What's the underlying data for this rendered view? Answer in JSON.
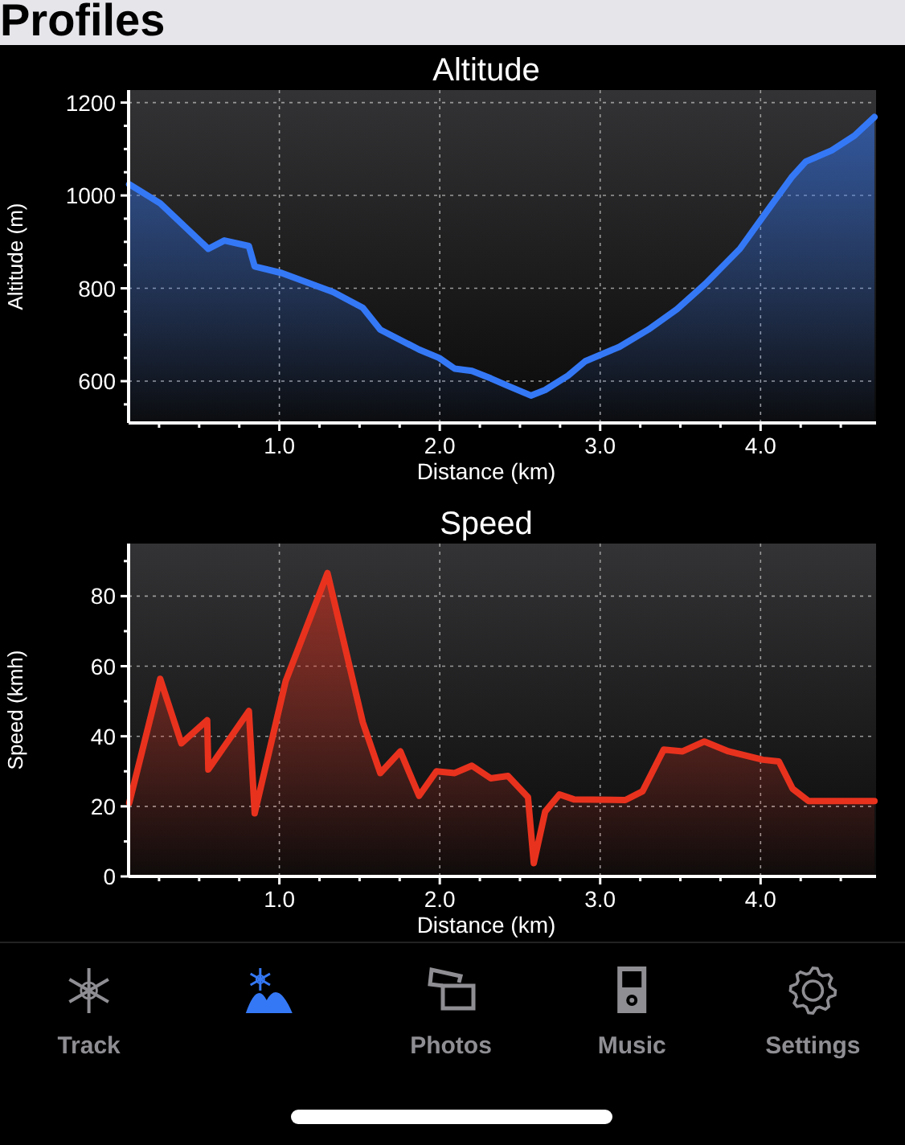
{
  "chart_data": [
    {
      "type": "other",
      "title": "Profiles",
      "categories": [
        "Track",
        null,
        "Photos",
        "Music",
        "Settings"
      ]
    },
    {
      "type": "area",
      "title": "Altitude",
      "xlabel": "Distance (km)",
      "ylabel": "Altitude (m)",
      "grid": true,
      "xlim": [
        0.06,
        4.72
      ],
      "ylim": [
        510,
        1227
      ],
      "xticks": [
        {
          "value": 0.25,
          "label": null
        },
        {
          "value": 0.5,
          "label": null
        },
        {
          "value": 0.75,
          "label": null
        },
        {
          "value": 1,
          "label": "1.0"
        },
        {
          "value": 1.25,
          "label": null
        },
        {
          "value": 1.5,
          "label": null
        },
        {
          "value": 1.75,
          "label": null
        },
        {
          "value": 2,
          "label": "2.0"
        },
        {
          "value": 2.25,
          "label": null
        },
        {
          "value": 2.5,
          "label": null
        },
        {
          "value": 2.75,
          "label": null
        },
        {
          "value": 3,
          "label": "3.0"
        },
        {
          "value": 3.25,
          "label": null
        },
        {
          "value": 3.5,
          "label": null
        },
        {
          "value": 3.75,
          "label": null
        },
        {
          "value": 4,
          "label": "4.0"
        },
        {
          "value": 4.25,
          "label": null
        },
        {
          "value": 4.5,
          "label": null
        }
      ],
      "yticks": [
        {
          "value": 550,
          "label": null
        },
        600,
        {
          "value": 650,
          "label": null
        },
        {
          "value": 700,
          "label": null
        },
        {
          "value": 750,
          "label": null
        },
        800,
        {
          "value": 850,
          "label": null
        },
        {
          "value": 900,
          "label": null
        },
        {
          "value": 950,
          "label": null
        },
        1000,
        {
          "value": 1050,
          "label": null
        },
        {
          "value": 1100,
          "label": null
        },
        {
          "value": 1150,
          "label": null
        },
        1200
      ],
      "x": [
        0.064,
        0.257,
        0.557,
        0.657,
        0.81,
        0.846,
        1.014,
        1.336,
        1.52,
        1.629,
        1.871,
        1.996,
        2.093,
        2.2,
        2.318,
        2.425,
        2.568,
        2.657,
        2.8,
        2.907,
        3.121,
        3.3,
        3.479,
        3.657,
        3.871,
        4.05,
        4.193,
        4.282,
        4.443,
        4.586,
        4.71
      ],
      "series": [
        {
          "color": "#3478f6",
          "values": [
            1024,
            983,
            885,
            903,
            891,
            847,
            833,
            792,
            758,
            711,
            668,
            650,
            627,
            622,
            606,
            590,
            569,
            581,
            612,
            643,
            674,
            711,
            755,
            810,
            885,
            971,
            1039,
            1073,
            1097,
            1129,
            1169
          ]
        }
      ]
    },
    {
      "type": "area",
      "title": "Speed",
      "xlabel": "Distance (km)",
      "ylabel": "Speed (kmh)",
      "grid": true,
      "xlim": [
        0.06,
        4.72
      ],
      "ylim": [
        0,
        95
      ],
      "xticks": [
        {
          "value": 0.25,
          "label": null
        },
        {
          "value": 0.5,
          "label": null
        },
        {
          "value": 0.75,
          "label": null
        },
        {
          "value": 1,
          "label": "1.0"
        },
        {
          "value": 1.25,
          "label": null
        },
        {
          "value": 1.5,
          "label": null
        },
        {
          "value": 1.75,
          "label": null
        },
        {
          "value": 2,
          "label": "2.0"
        },
        {
          "value": 2.25,
          "label": null
        },
        {
          "value": 2.5,
          "label": null
        },
        {
          "value": 2.75,
          "label": null
        },
        {
          "value": 3,
          "label": "3.0"
        },
        {
          "value": 3.25,
          "label": null
        },
        {
          "value": 3.5,
          "label": null
        },
        {
          "value": 3.75,
          "label": null
        },
        {
          "value": 4,
          "label": "4.0"
        },
        {
          "value": 4.25,
          "label": null
        },
        {
          "value": 4.5,
          "label": null
        }
      ],
      "yticks": [
        0,
        {
          "value": 10,
          "label": null
        },
        20,
        {
          "value": 30,
          "label": null
        },
        40,
        {
          "value": 50,
          "label": null
        },
        60,
        {
          "value": 70,
          "label": null
        },
        80,
        {
          "value": 90,
          "label": null
        }
      ],
      "x": [
        0.064,
        0.257,
        0.389,
        0.55,
        0.557,
        0.81,
        0.846,
        1.039,
        1.3,
        1.52,
        1.629,
        1.754,
        1.871,
        1.979,
        2.093,
        2.2,
        2.318,
        2.425,
        2.55,
        2.586,
        2.657,
        2.746,
        2.836,
        3.157,
        3.264,
        3.396,
        3.514,
        3.65,
        3.8,
        4.014,
        4.114,
        4.2,
        4.3,
        4.514,
        4.71
      ],
      "series": [
        {
          "color": "#e8321e",
          "values": [
            21,
            56.4,
            38,
            44.6,
            30.5,
            47.2,
            18,
            55.7,
            86.6,
            44,
            29.5,
            35.7,
            23,
            30,
            29.5,
            31.6,
            28,
            28.7,
            22.6,
            3.8,
            18.5,
            23.4,
            22,
            21.8,
            24.3,
            36.2,
            35.7,
            38.5,
            35.7,
            33.3,
            32.8,
            25,
            21.5,
            21.5,
            21.5
          ]
        }
      ]
    }
  ]
}
